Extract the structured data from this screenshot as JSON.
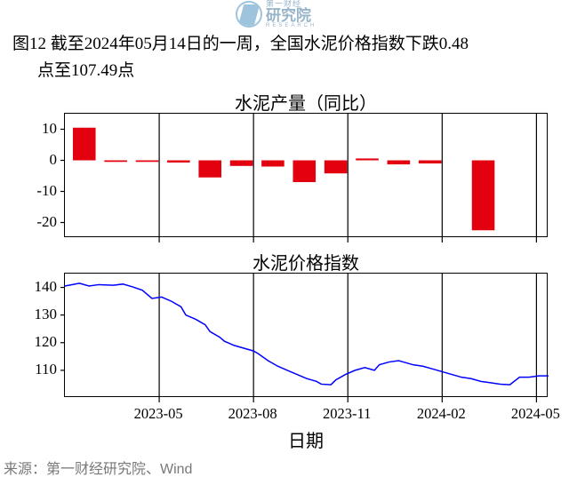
{
  "watermark": {
    "small": "第一财经",
    "big": "研究院",
    "sub": "RESEARCH"
  },
  "title_line1": "图12  截至2024年05月14日的一周，全国水泥价格指数下跌0.48",
  "title_line2": "点至107.49点",
  "xaxis_title": "日期",
  "source": "来源：第一财经研究院、Wind",
  "charts": {
    "top": {
      "title": "水泥产量（同比）",
      "type": "bar",
      "ylim": [
        -25,
        15
      ],
      "yticks": [
        -20,
        -10,
        0,
        10
      ],
      "bar_color": "#e3000f",
      "grid_color": "#000000",
      "x_positions": [
        0.04,
        0.105,
        0.17,
        0.235,
        0.3,
        0.365,
        0.43,
        0.495,
        0.56,
        0.625,
        0.69,
        0.755,
        0.865
      ],
      "bar_width": 0.047,
      "values": [
        10.5,
        -0.5,
        -0.5,
        -0.7,
        -5.5,
        -1.8,
        -2.0,
        -7.0,
        -4.2,
        0.6,
        -1.3,
        -1.0,
        -22.5
      ],
      "vlines": [
        0.195,
        0.39,
        0.585,
        0.78,
        0.975
      ]
    },
    "bottom": {
      "title": "水泥价格指数",
      "type": "line",
      "ylim": [
        100,
        145
      ],
      "yticks": [
        110,
        120,
        130,
        140
      ],
      "line_color": "#0000ff",
      "line_width": 1.5,
      "vlines": [
        0.195,
        0.39,
        0.585,
        0.78,
        0.975
      ],
      "points": [
        [
          0.0,
          140.5
        ],
        [
          0.03,
          141.5
        ],
        [
          0.05,
          140.5
        ],
        [
          0.07,
          141.0
        ],
        [
          0.1,
          140.8
        ],
        [
          0.12,
          141.2
        ],
        [
          0.14,
          140.2
        ],
        [
          0.16,
          139.0
        ],
        [
          0.18,
          136.0
        ],
        [
          0.2,
          136.5
        ],
        [
          0.22,
          135.0
        ],
        [
          0.24,
          133.0
        ],
        [
          0.25,
          130.0
        ],
        [
          0.27,
          128.5
        ],
        [
          0.29,
          126.5
        ],
        [
          0.3,
          124.0
        ],
        [
          0.32,
          122.0
        ],
        [
          0.33,
          120.5
        ],
        [
          0.35,
          119.0
        ],
        [
          0.37,
          118.0
        ],
        [
          0.39,
          117.0
        ],
        [
          0.4,
          116.0
        ],
        [
          0.42,
          113.5
        ],
        [
          0.44,
          111.5
        ],
        [
          0.46,
          110.0
        ],
        [
          0.48,
          108.5
        ],
        [
          0.5,
          107.0
        ],
        [
          0.52,
          106.0
        ],
        [
          0.53,
          105.0
        ],
        [
          0.55,
          104.8
        ],
        [
          0.56,
          106.5
        ],
        [
          0.58,
          108.5
        ],
        [
          0.6,
          110.0
        ],
        [
          0.62,
          111.0
        ],
        [
          0.64,
          110.0
        ],
        [
          0.65,
          112.0
        ],
        [
          0.67,
          113.0
        ],
        [
          0.69,
          113.5
        ],
        [
          0.7,
          113.0
        ],
        [
          0.72,
          112.0
        ],
        [
          0.74,
          111.5
        ],
        [
          0.76,
          110.5
        ],
        [
          0.78,
          109.5
        ],
        [
          0.8,
          108.5
        ],
        [
          0.82,
          107.5
        ],
        [
          0.84,
          107.0
        ],
        [
          0.86,
          106.0
        ],
        [
          0.88,
          105.5
        ],
        [
          0.9,
          105.0
        ],
        [
          0.92,
          104.8
        ],
        [
          0.94,
          107.5
        ],
        [
          0.96,
          107.5
        ],
        [
          0.98,
          108.0
        ],
        [
          1.0,
          108.0
        ]
      ]
    },
    "xticks": [
      {
        "pos": 0.195,
        "label": "2023-05"
      },
      {
        "pos": 0.39,
        "label": "2023-08"
      },
      {
        "pos": 0.585,
        "label": "2023-11"
      },
      {
        "pos": 0.78,
        "label": "2024-02"
      },
      {
        "pos": 0.975,
        "label": "2024-05"
      }
    ]
  },
  "colors": {
    "text": "#000000",
    "source_text": "#787878",
    "bg": "#ffffff"
  }
}
